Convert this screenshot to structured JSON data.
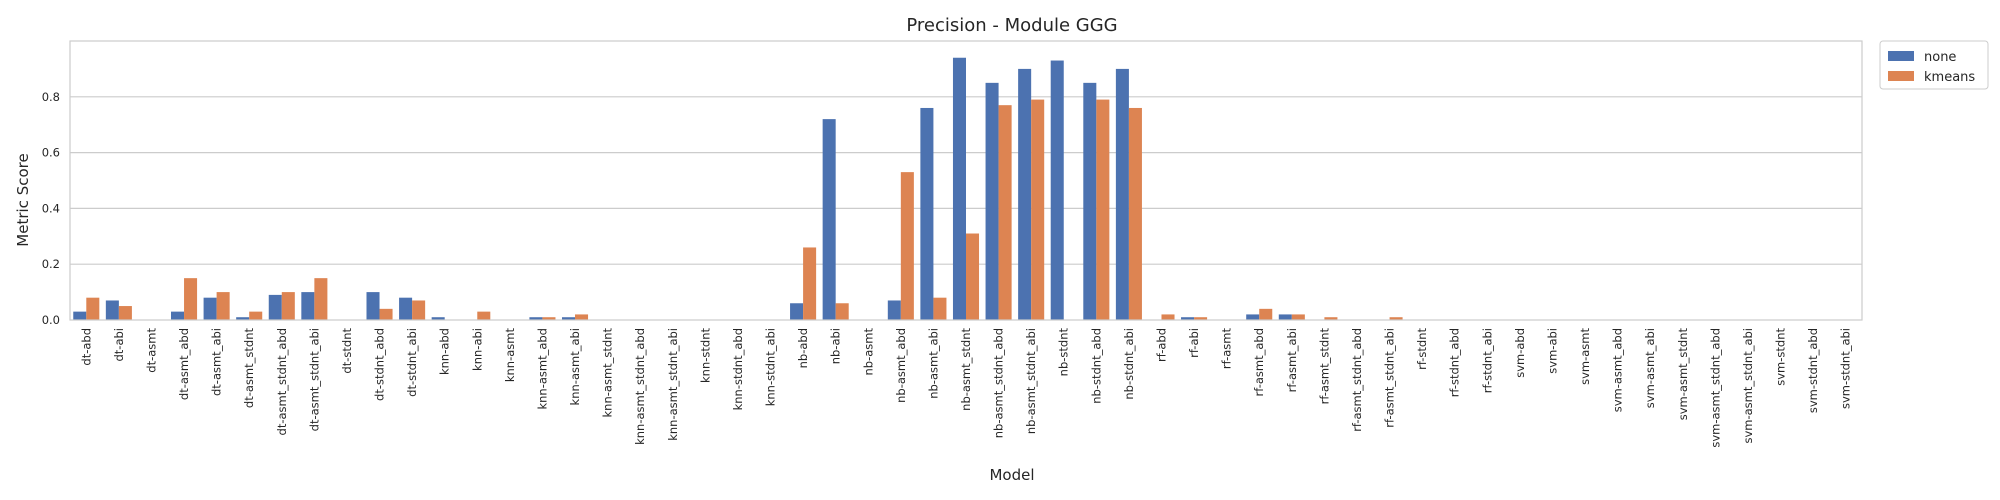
{
  "chart_data": {
    "type": "bar",
    "title": "Precision - Module GGG",
    "xlabel": "Model",
    "ylabel": "Metric Score",
    "ylim": [
      0,
      1.0
    ],
    "yticks": [
      "0.0",
      "0.2",
      "0.4",
      "0.6",
      "0.8"
    ],
    "grid": true,
    "legend_position": "outside-top-right",
    "categories": [
      "dt-abd",
      "dt-abi",
      "dt-asmt",
      "dt-asmt_abd",
      "dt-asmt_abi",
      "dt-asmt_stdnt",
      "dt-asmt_stdnt_abd",
      "dt-asmt_stdnt_abi",
      "dt-stdnt",
      "dt-stdnt_abd",
      "dt-stdnt_abi",
      "knn-abd",
      "knn-abi",
      "knn-asmt",
      "knn-asmt_abd",
      "knn-asmt_abi",
      "knn-asmt_stdnt",
      "knn-asmt_stdnt_abd",
      "knn-asmt_stdnt_abi",
      "knn-stdnt",
      "knn-stdnt_abd",
      "knn-stdnt_abi",
      "nb-abd",
      "nb-abi",
      "nb-asmt",
      "nb-asmt_abd",
      "nb-asmt_abi",
      "nb-asmt_stdnt",
      "nb-asmt_stdnt_abd",
      "nb-asmt_stdnt_abi",
      "nb-stdnt",
      "nb-stdnt_abd",
      "nb-stdnt_abi",
      "rf-abd",
      "rf-abi",
      "rf-asmt",
      "rf-asmt_abd",
      "rf-asmt_abi",
      "rf-asmt_stdnt",
      "rf-asmt_stdnt_abd",
      "rf-asmt_stdnt_abi",
      "rf-stdnt",
      "rf-stdnt_abd",
      "rf-stdnt_abi",
      "svm-abd",
      "svm-abi",
      "svm-asmt",
      "svm-asmt_abd",
      "svm-asmt_abi",
      "svm-asmt_stdnt",
      "svm-asmt_stdnt_abd",
      "svm-asmt_stdnt_abi",
      "svm-stdnt",
      "svm-stdnt_abd",
      "svm-stdnt_abi"
    ],
    "series": [
      {
        "name": "none",
        "color": "#4c72b0",
        "values": [
          0.03,
          0.07,
          0.0,
          0.03,
          0.08,
          0.01,
          0.09,
          0.1,
          0.0,
          0.1,
          0.08,
          0.01,
          0.0,
          0.0,
          0.01,
          0.01,
          0.0,
          0.0,
          0.0,
          0.0,
          0.0,
          0.0,
          0.06,
          0.72,
          0.0,
          0.07,
          0.76,
          0.94,
          0.85,
          0.9,
          0.93,
          0.85,
          0.9,
          0.0,
          0.01,
          0.0,
          0.02,
          0.02,
          0.0,
          0.0,
          0.0,
          0.0,
          0.0,
          0.0,
          0.0,
          0.0,
          0.0,
          0.0,
          0.0,
          0.0,
          0.0,
          0.0,
          0.0,
          0.0,
          0.0
        ]
      },
      {
        "name": "kmeans",
        "color": "#dd8452",
        "values": [
          0.08,
          0.05,
          0.0,
          0.15,
          0.1,
          0.03,
          0.1,
          0.15,
          0.0,
          0.04,
          0.07,
          0.0,
          0.03,
          0.0,
          0.01,
          0.02,
          0.0,
          0.0,
          0.0,
          0.0,
          0.0,
          0.0,
          0.26,
          0.06,
          0.0,
          0.53,
          0.08,
          0.31,
          0.77,
          0.79,
          0.0,
          0.79,
          0.76,
          0.02,
          0.01,
          0.0,
          0.04,
          0.02,
          0.01,
          0.0,
          0.01,
          0.0,
          0.0,
          0.0,
          0.0,
          0.0,
          0.0,
          0.0,
          0.0,
          0.0,
          0.0,
          0.0,
          0.0,
          0.0,
          0.0
        ]
      }
    ]
  }
}
